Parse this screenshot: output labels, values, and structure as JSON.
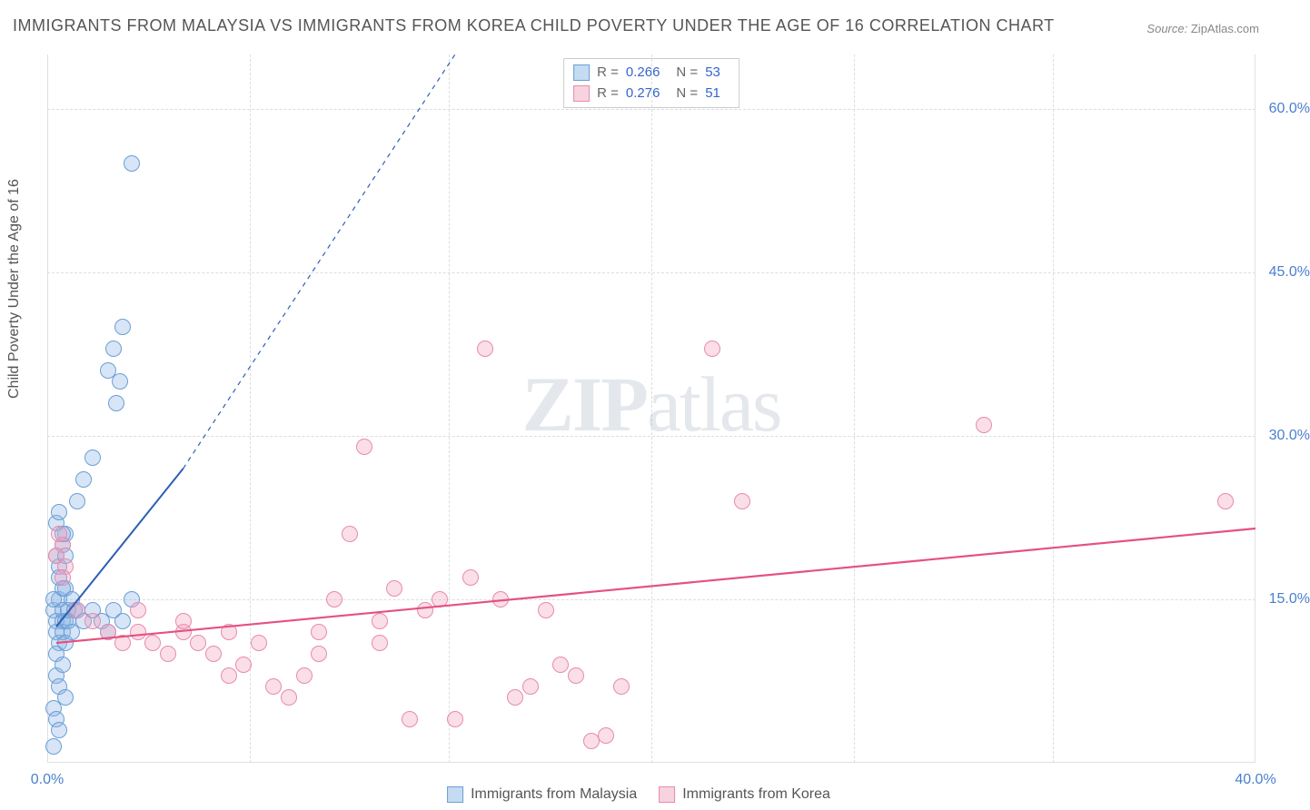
{
  "title": "IMMIGRANTS FROM MALAYSIA VS IMMIGRANTS FROM KOREA CHILD POVERTY UNDER THE AGE OF 16 CORRELATION CHART",
  "source_label": "Source:",
  "source_name": "ZipAtlas.com",
  "y_axis_label": "Child Poverty Under the Age of 16",
  "watermark_bold": "ZIP",
  "watermark_light": "atlas",
  "chart": {
    "type": "scatter",
    "xlim": [
      0,
      40
    ],
    "ylim": [
      0,
      65
    ],
    "x_ticks": [
      0,
      40
    ],
    "x_tick_labels": [
      "0.0%",
      "40.0%"
    ],
    "y_ticks": [
      15,
      30,
      45,
      60
    ],
    "y_tick_labels": [
      "15.0%",
      "30.0%",
      "45.0%",
      "60.0%"
    ],
    "x_gridlines": [
      6.7,
      13.3,
      20,
      26.7,
      33.3
    ],
    "background_color": "#ffffff",
    "grid_color": "#dddddd",
    "axis_color": "#e0e0e0",
    "tick_label_color": "#4a7fd0",
    "tick_fontsize": 16,
    "dot_radius": 9,
    "dot_stroke_width": 1.2,
    "series": [
      {
        "id": "malaysia",
        "label": "Immigrants from Malaysia",
        "color_fill": "rgba(140,180,230,0.35)",
        "color_stroke": "#6a9fd4",
        "swatch_fill": "#c5dbf2",
        "swatch_stroke": "#6a9fd4",
        "R": "0.266",
        "N": "53",
        "trend": {
          "x1": 0.3,
          "y1": 12.5,
          "x2": 4.5,
          "y2": 27.0,
          "dash_x2": 13.5,
          "dash_y2": 65,
          "color": "#2e5fb3",
          "width": 2
        },
        "points": [
          [
            0.2,
            14
          ],
          [
            0.3,
            13
          ],
          [
            0.4,
            15
          ],
          [
            0.5,
            14
          ],
          [
            0.3,
            12
          ],
          [
            0.6,
            16
          ],
          [
            0.5,
            13
          ],
          [
            0.4,
            11
          ],
          [
            0.3,
            10
          ],
          [
            0.2,
            15
          ],
          [
            0.6,
            13
          ],
          [
            0.7,
            14
          ],
          [
            0.5,
            12
          ],
          [
            0.6,
            11
          ],
          [
            0.8,
            15
          ],
          [
            0.9,
            14
          ],
          [
            0.4,
            18
          ],
          [
            0.3,
            19
          ],
          [
            0.5,
            20
          ],
          [
            0.6,
            21
          ],
          [
            0.4,
            17
          ],
          [
            0.5,
            16
          ],
          [
            0.7,
            13
          ],
          [
            0.8,
            12
          ],
          [
            0.3,
            8
          ],
          [
            0.4,
            7
          ],
          [
            0.6,
            6
          ],
          [
            0.2,
            5
          ],
          [
            0.5,
            9
          ],
          [
            0.3,
            4
          ],
          [
            0.2,
            1.5
          ],
          [
            0.4,
            3
          ],
          [
            1.0,
            14
          ],
          [
            1.2,
            13
          ],
          [
            1.5,
            14
          ],
          [
            1.8,
            13
          ],
          [
            2.0,
            12
          ],
          [
            2.2,
            14
          ],
          [
            2.5,
            13
          ],
          [
            2.8,
            15
          ],
          [
            1.5,
            28
          ],
          [
            1.0,
            24
          ],
          [
            1.2,
            26
          ],
          [
            2.5,
            40
          ],
          [
            2.2,
            38
          ],
          [
            2.0,
            36
          ],
          [
            2.3,
            33
          ],
          [
            2.4,
            35
          ],
          [
            2.8,
            55
          ],
          [
            0.3,
            22
          ],
          [
            0.5,
            21
          ],
          [
            0.4,
            23
          ],
          [
            0.6,
            19
          ]
        ]
      },
      {
        "id": "korea",
        "label": "Immigrants from Korea",
        "color_fill": "rgba(240,160,190,0.35)",
        "color_stroke": "#e88aae",
        "swatch_fill": "#f7d3e0",
        "swatch_stroke": "#e88aae",
        "R": "0.276",
        "N": "51",
        "trend": {
          "x1": 0.3,
          "y1": 11.0,
          "x2": 40,
          "y2": 21.5,
          "color": "#e5517f",
          "width": 2.2
        },
        "points": [
          [
            0.5,
            20
          ],
          [
            0.3,
            19
          ],
          [
            0.4,
            21
          ],
          [
            0.6,
            18
          ],
          [
            0.5,
            17
          ],
          [
            1.0,
            14
          ],
          [
            1.5,
            13
          ],
          [
            2.0,
            12
          ],
          [
            2.5,
            11
          ],
          [
            3.0,
            12
          ],
          [
            3.5,
            11
          ],
          [
            4.0,
            10
          ],
          [
            4.5,
            12
          ],
          [
            5.0,
            11
          ],
          [
            5.5,
            10
          ],
          [
            6.0,
            8
          ],
          [
            6.5,
            9
          ],
          [
            7.0,
            11
          ],
          [
            7.5,
            7
          ],
          [
            8.0,
            6
          ],
          [
            8.5,
            8
          ],
          [
            9.0,
            12
          ],
          [
            9.5,
            15
          ],
          [
            10.0,
            21
          ],
          [
            10.5,
            29
          ],
          [
            11.0,
            13
          ],
          [
            11.5,
            16
          ],
          [
            12.0,
            4
          ],
          [
            12.5,
            14
          ],
          [
            13.0,
            15
          ],
          [
            13.5,
            4
          ],
          [
            14.0,
            17
          ],
          [
            14.5,
            38
          ],
          [
            15.0,
            15
          ],
          [
            15.5,
            6
          ],
          [
            16.0,
            7
          ],
          [
            16.5,
            14
          ],
          [
            17.0,
            9
          ],
          [
            17.5,
            8
          ],
          [
            18.0,
            2
          ],
          [
            18.5,
            2.5
          ],
          [
            19.0,
            7
          ],
          [
            22.0,
            38
          ],
          [
            23.0,
            24
          ],
          [
            31.0,
            31
          ],
          [
            39.0,
            24
          ],
          [
            3.0,
            14
          ],
          [
            4.5,
            13
          ],
          [
            6.0,
            12
          ],
          [
            9.0,
            10
          ],
          [
            11.0,
            11
          ]
        ]
      }
    ]
  },
  "legend_top": {
    "R_label": "R =",
    "N_label": "N ="
  }
}
